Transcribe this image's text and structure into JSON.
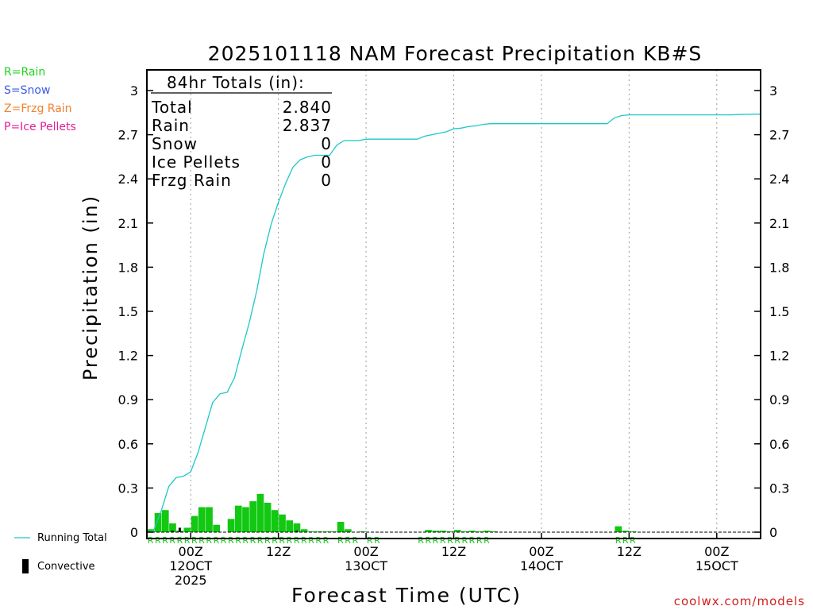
{
  "legend_types": [
    {
      "label": "R=Rain",
      "color": "#1ed21e"
    },
    {
      "label": "S=Snow",
      "color": "#3a5ae6"
    },
    {
      "label": "Z=Frzg Rain",
      "color": "#f0822d"
    },
    {
      "label": "P=Ice Pellets",
      "color": "#e61e96"
    }
  ],
  "series_legend": {
    "running_total": "Running Total",
    "convective": "Convective"
  },
  "credit": "coolwx.com/models",
  "totals": {
    "header": "84hr Totals (in):",
    "rows": [
      {
        "label": "Total",
        "value": "2.840"
      },
      {
        "label": "Rain",
        "value": "2.837"
      },
      {
        "label": "Snow",
        "value": "0"
      },
      {
        "label": "Ice Pellets",
        "value": "0"
      },
      {
        "label": "Frzg Rain",
        "value": "0"
      }
    ]
  },
  "chart_data": {
    "type": "bar+line",
    "title": "2025101118 NAM Forecast Precipitation KB#S",
    "xlabel": "Forecast Time (UTC)",
    "ylabel": "Precipitation (in)",
    "x_unit": "forecast hour",
    "xlim": [
      0,
      84
    ],
    "ylim": [
      0,
      3.15
    ],
    "yticks": [
      0,
      0.3,
      0.6,
      0.9,
      1.2,
      1.5,
      1.8,
      2.1,
      2.4,
      2.7,
      3
    ],
    "ytick_labels": [
      "0",
      "0.3",
      "0.6",
      "0.9",
      "1.2",
      "1.5",
      "1.8",
      "2.1",
      "2.4",
      "2.7",
      "3"
    ],
    "xticks": [
      {
        "hour": 6,
        "lines": [
          "00Z",
          "12OCT",
          "2025"
        ]
      },
      {
        "hour": 18,
        "lines": [
          "12Z"
        ]
      },
      {
        "hour": 30,
        "lines": [
          "00Z",
          "13OCT"
        ]
      },
      {
        "hour": 42,
        "lines": [
          "12Z"
        ]
      },
      {
        "hour": 54,
        "lines": [
          "00Z",
          "14OCT"
        ]
      },
      {
        "hour": 66,
        "lines": [
          "12Z"
        ]
      },
      {
        "hour": 78,
        "lines": [
          "00Z",
          "15OCT"
        ]
      }
    ],
    "hourly_precip": {
      "hours": [
        1,
        2,
        3,
        4,
        5,
        6,
        7,
        8,
        9,
        10,
        11,
        12,
        13,
        14,
        15,
        16,
        17,
        18,
        19,
        20,
        21,
        22,
        23,
        24,
        25,
        26,
        27,
        28,
        29,
        30,
        31,
        32,
        33,
        34,
        35,
        36,
        37,
        38,
        39,
        40,
        41,
        42,
        43,
        44,
        45,
        46,
        47,
        48,
        49,
        50,
        51,
        52,
        53,
        54,
        55,
        56,
        57,
        58,
        59,
        60,
        61,
        62,
        63,
        64,
        65,
        66,
        67,
        68,
        69,
        70,
        71,
        72,
        73,
        74,
        75,
        76,
        77,
        78,
        79,
        80,
        81,
        82,
        83,
        84
      ],
      "values": [
        0.02,
        0.13,
        0.15,
        0.06,
        0.01,
        0.03,
        0.11,
        0.17,
        0.17,
        0.05,
        0.0,
        0.09,
        0.18,
        0.17,
        0.21,
        0.26,
        0.2,
        0.15,
        0.12,
        0.08,
        0.06,
        0.02,
        0.005,
        0.005,
        0.005,
        0.005,
        0.07,
        0.02,
        0.0,
        0.005,
        0.0,
        0.0,
        0.0,
        0.0,
        0.0,
        0.0,
        0.0,
        0.0,
        0.015,
        0.01,
        0.01,
        0.005,
        0.015,
        0.005,
        0.01,
        0.005,
        0.01,
        0.005,
        0.0,
        0.0,
        0.0,
        0.0,
        0.0,
        0.0,
        0.0,
        0.0,
        0.0,
        0.0,
        0.0,
        0.0,
        0.0,
        0.0,
        0.0,
        0.0,
        0.04,
        0.01,
        0.005,
        0.0,
        0.0,
        0.0,
        0.0,
        0.0,
        0.0,
        0.0,
        0.0,
        0.0,
        0.0,
        0.0,
        0.0,
        0.0,
        0.0,
        0.0,
        0.0,
        0.0
      ],
      "convective": [
        0,
        0,
        0,
        0.01,
        0.03,
        0,
        0,
        0,
        0,
        0,
        0,
        0,
        0,
        0,
        0,
        0,
        0,
        0,
        0,
        0,
        0.01,
        0,
        0,
        0,
        0,
        0,
        0,
        0,
        0,
        0,
        0,
        0,
        0,
        0,
        0,
        0,
        0,
        0,
        0,
        0,
        0,
        0,
        0,
        0,
        0,
        0,
        0,
        0,
        0,
        0,
        0,
        0,
        0,
        0,
        0,
        0,
        0,
        0,
        0,
        0,
        0,
        0,
        0,
        0,
        0,
        0,
        0,
        0,
        0,
        0,
        0,
        0,
        0,
        0,
        0,
        0,
        0,
        0,
        0,
        0,
        0,
        0,
        0,
        0
      ]
    },
    "running_total": {
      "hours": [
        0.5,
        1,
        2,
        3,
        4,
        5,
        6,
        7,
        8,
        9,
        10,
        11,
        12,
        13,
        14,
        15,
        16,
        17,
        18,
        19,
        20,
        21,
        22,
        23,
        24,
        25,
        26,
        27,
        28,
        29,
        30,
        31,
        32,
        33,
        34,
        35,
        36,
        37,
        38,
        39,
        40,
        41,
        42,
        43,
        44,
        45,
        46,
        47,
        48,
        49,
        50,
        51,
        52,
        53,
        54,
        55,
        56,
        57,
        58,
        59,
        60,
        61,
        62,
        63,
        64,
        65,
        66,
        67,
        68,
        69,
        70,
        71,
        72,
        73,
        74,
        75,
        76,
        77,
        78,
        79,
        80,
        81,
        82,
        83,
        84
      ],
      "values": [
        0.0,
        0.02,
        0.15,
        0.31,
        0.37,
        0.38,
        0.41,
        0.54,
        0.71,
        0.88,
        0.94,
        0.95,
        1.05,
        1.24,
        1.42,
        1.63,
        1.89,
        2.09,
        2.24,
        2.37,
        2.48,
        2.53,
        2.55,
        2.56,
        2.56,
        2.56,
        2.63,
        2.66,
        2.66,
        2.66,
        2.67,
        2.67,
        2.67,
        2.67,
        2.67,
        2.67,
        2.67,
        2.67,
        2.69,
        2.7,
        2.71,
        2.72,
        2.74,
        2.745,
        2.755,
        2.76,
        2.77,
        2.775,
        2.775,
        2.775,
        2.775,
        2.775,
        2.775,
        2.775,
        2.775,
        2.775,
        2.775,
        2.775,
        2.775,
        2.775,
        2.775,
        2.775,
        2.775,
        2.775,
        2.815,
        2.83,
        2.835,
        2.835,
        2.835,
        2.835,
        2.835,
        2.835,
        2.835,
        2.835,
        2.835,
        2.835,
        2.835,
        2.835,
        2.835,
        2.835,
        2.835,
        2.837,
        2.838,
        2.839,
        2.84
      ]
    },
    "type_codes": [
      {
        "code": "R",
        "from_hour": 1,
        "to_hour": 25
      },
      {
        "code": "R",
        "from_hour": 27,
        "to_hour": 29
      },
      {
        "code": "R",
        "from_hour": 31,
        "to_hour": 32
      },
      {
        "code": "R",
        "from_hour": 38,
        "to_hour": 47
      },
      {
        "code": "R",
        "from_hour": 65,
        "to_hour": 67
      }
    ]
  }
}
